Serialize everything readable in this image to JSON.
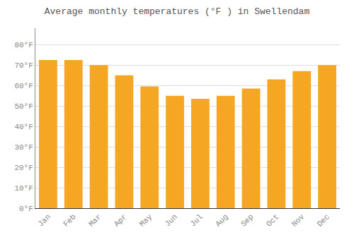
{
  "chart_data": {
    "type": "bar",
    "title": "Average monthly temperatures (°F ) in Swellendam",
    "categories": [
      "Jan",
      "Feb",
      "Mar",
      "Apr",
      "May",
      "Jun",
      "Jul",
      "Aug",
      "Sep",
      "Oct",
      "Nov",
      "Dec"
    ],
    "values": [
      72.5,
      72.5,
      70.0,
      65.0,
      59.5,
      55.0,
      53.5,
      55.0,
      58.5,
      63.0,
      67.0,
      70.0
    ],
    "color": "#F5A623",
    "ylim": [
      0,
      88
    ],
    "yticks": [
      {
        "value": 0,
        "label": "0°F"
      },
      {
        "value": 10,
        "label": "10°F"
      },
      {
        "value": 20,
        "label": "20°F"
      },
      {
        "value": 30,
        "label": "30°F"
      },
      {
        "value": 40,
        "label": "40°F"
      },
      {
        "value": 50,
        "label": "50°F"
      },
      {
        "value": 60,
        "label": "60°F"
      },
      {
        "value": 70,
        "label": "70°F"
      },
      {
        "value": 80,
        "label": "80°F"
      }
    ],
    "grid": true
  }
}
